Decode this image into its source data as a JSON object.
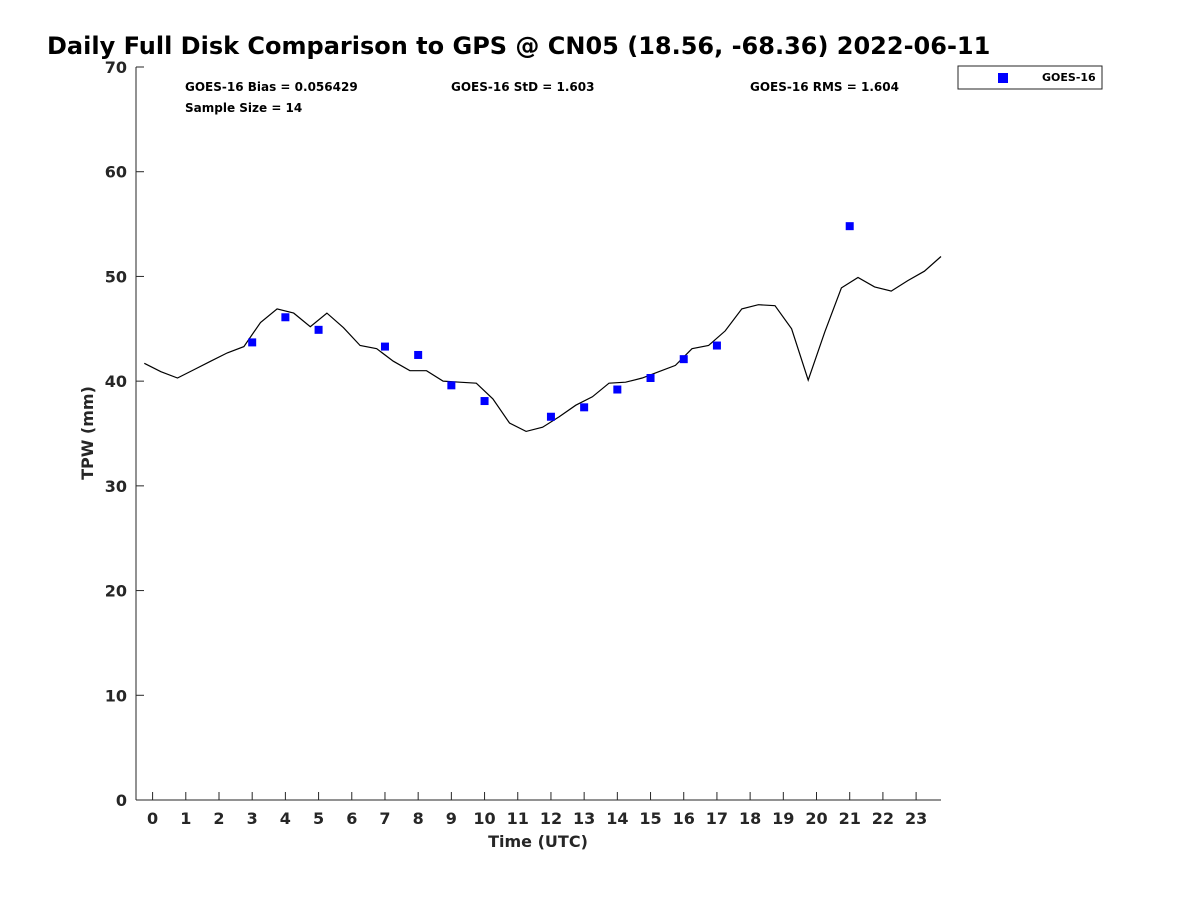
{
  "chart_data": {
    "type": "scatter",
    "title": "Daily Full Disk Comparison to GPS @ CN05 (18.56, -68.36) 2022-06-11",
    "xlabel": "Time (UTC)",
    "ylabel": "TPW (mm)",
    "xlim": [
      -0.5,
      23.75
    ],
    "ylim": [
      0,
      70
    ],
    "x_ticks": [
      0,
      1,
      2,
      3,
      4,
      5,
      6,
      7,
      8,
      9,
      10,
      11,
      12,
      13,
      14,
      15,
      16,
      17,
      18,
      19,
      20,
      21,
      22,
      23
    ],
    "y_ticks": [
      0,
      10,
      20,
      30,
      40,
      50,
      60,
      70
    ],
    "grid": false,
    "legend_position": "outside-top-right",
    "stats": {
      "bias": "GOES-16 Bias = 0.056429",
      "std": "GOES-16 StD = 1.603",
      "rms": "GOES-16 RMS = 1.604",
      "sample": "Sample Size = 14"
    },
    "series": [
      {
        "name": "GOES-16",
        "kind": "scatter",
        "marker": "square",
        "color": "#0000ff",
        "points": [
          [
            3.0,
            43.7
          ],
          [
            4.0,
            46.1
          ],
          [
            5.0,
            44.9
          ],
          [
            7.0,
            43.3
          ],
          [
            8.0,
            42.5
          ],
          [
            9.0,
            39.6
          ],
          [
            10.0,
            38.1
          ],
          [
            12.0,
            36.6
          ],
          [
            13.0,
            37.5
          ],
          [
            14.0,
            39.2
          ],
          [
            15.0,
            40.3
          ],
          [
            16.0,
            42.1
          ],
          [
            17.0,
            43.4
          ],
          [
            21.0,
            54.8
          ]
        ]
      },
      {
        "kind": "line",
        "color": "#000000",
        "points": [
          [
            -0.25,
            41.7
          ],
          [
            0.25,
            40.9
          ],
          [
            0.75,
            40.3
          ],
          [
            1.25,
            41.1
          ],
          [
            1.75,
            41.9
          ],
          [
            2.25,
            42.7
          ],
          [
            2.75,
            43.3
          ],
          [
            3.25,
            45.6
          ],
          [
            3.75,
            46.9
          ],
          [
            4.25,
            46.5
          ],
          [
            4.75,
            45.2
          ],
          [
            5.25,
            46.5
          ],
          [
            5.75,
            45.1
          ],
          [
            6.25,
            43.4
          ],
          [
            6.75,
            43.1
          ],
          [
            7.25,
            41.9
          ],
          [
            7.75,
            41.0
          ],
          [
            8.25,
            41.0
          ],
          [
            8.75,
            40.0
          ],
          [
            9.25,
            39.9
          ],
          [
            9.75,
            39.8
          ],
          [
            10.25,
            38.3
          ],
          [
            10.75,
            36.0
          ],
          [
            11.25,
            35.2
          ],
          [
            11.75,
            35.6
          ],
          [
            12.25,
            36.6
          ],
          [
            12.75,
            37.7
          ],
          [
            13.25,
            38.5
          ],
          [
            13.75,
            39.8
          ],
          [
            14.25,
            39.9
          ],
          [
            14.75,
            40.3
          ],
          [
            15.25,
            40.9
          ],
          [
            15.75,
            41.5
          ],
          [
            16.25,
            43.1
          ],
          [
            16.75,
            43.4
          ],
          [
            17.25,
            44.8
          ],
          [
            17.75,
            46.9
          ],
          [
            18.25,
            47.3
          ],
          [
            18.75,
            47.2
          ],
          [
            19.25,
            45.0
          ],
          [
            19.75,
            40.1
          ],
          [
            20.25,
            44.7
          ],
          [
            20.75,
            48.9
          ],
          [
            21.25,
            49.9
          ],
          [
            21.75,
            49.0
          ],
          [
            22.25,
            48.6
          ],
          [
            22.75,
            49.6
          ],
          [
            23.25,
            50.5
          ],
          [
            23.75,
            51.9
          ]
        ]
      }
    ]
  }
}
